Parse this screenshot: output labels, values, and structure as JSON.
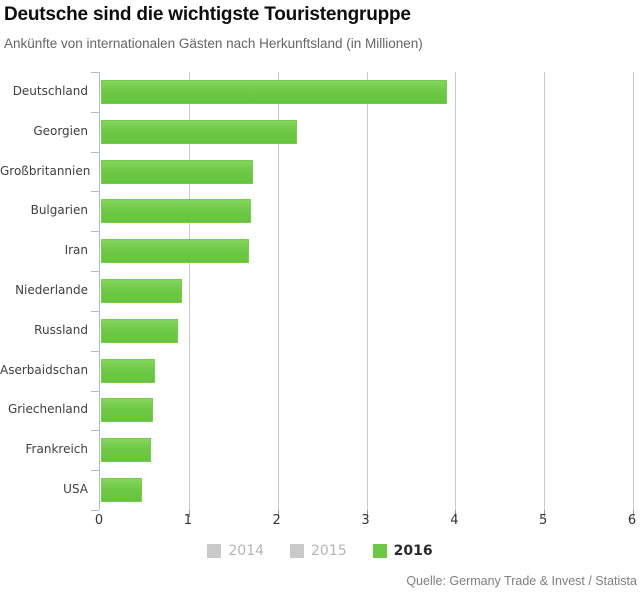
{
  "header": {
    "title": "Deutsche sind die wichtigste Touristengruppe",
    "subtitle": "Ankünfte von internationalen Gästen nach Herkunftsland (in Millionen)"
  },
  "chart_data": {
    "type": "bar",
    "orientation": "horizontal",
    "title": "Deutsche sind die wichtigste Touristengruppe",
    "subtitle": "Ankünfte von internationalen Gästen nach Herkunftsland (in Millionen)",
    "categories": [
      "Deutschland",
      "Georgien",
      "Großbritannien",
      "Bulgarien",
      "Iran",
      "Niederlande",
      "Russland",
      "Aserbaidschan",
      "Griechenland",
      "Frankreich",
      "USA"
    ],
    "series": [
      {
        "name": "2016",
        "values": [
          3.89,
          2.21,
          1.71,
          1.69,
          1.67,
          0.91,
          0.87,
          0.61,
          0.59,
          0.56,
          0.46
        ]
      }
    ],
    "xlim": [
      0,
      6
    ],
    "x_ticks": [
      0,
      1,
      2,
      3,
      4,
      5,
      6
    ],
    "grid": true,
    "legend_position": "bottom",
    "colors": {
      "bar_fill": "#6ec946",
      "bar_border": "#74ce4a",
      "grid": "#cccccc",
      "axis": "#a9c0d1",
      "inactive_legend": "#c9c9c9"
    }
  },
  "legend": {
    "items": [
      {
        "label": "2014",
        "active": false
      },
      {
        "label": "2015",
        "active": false
      },
      {
        "label": "2016",
        "active": true
      }
    ]
  },
  "footer": {
    "source": "Quelle: Germany Trade & Invest / Statista"
  }
}
